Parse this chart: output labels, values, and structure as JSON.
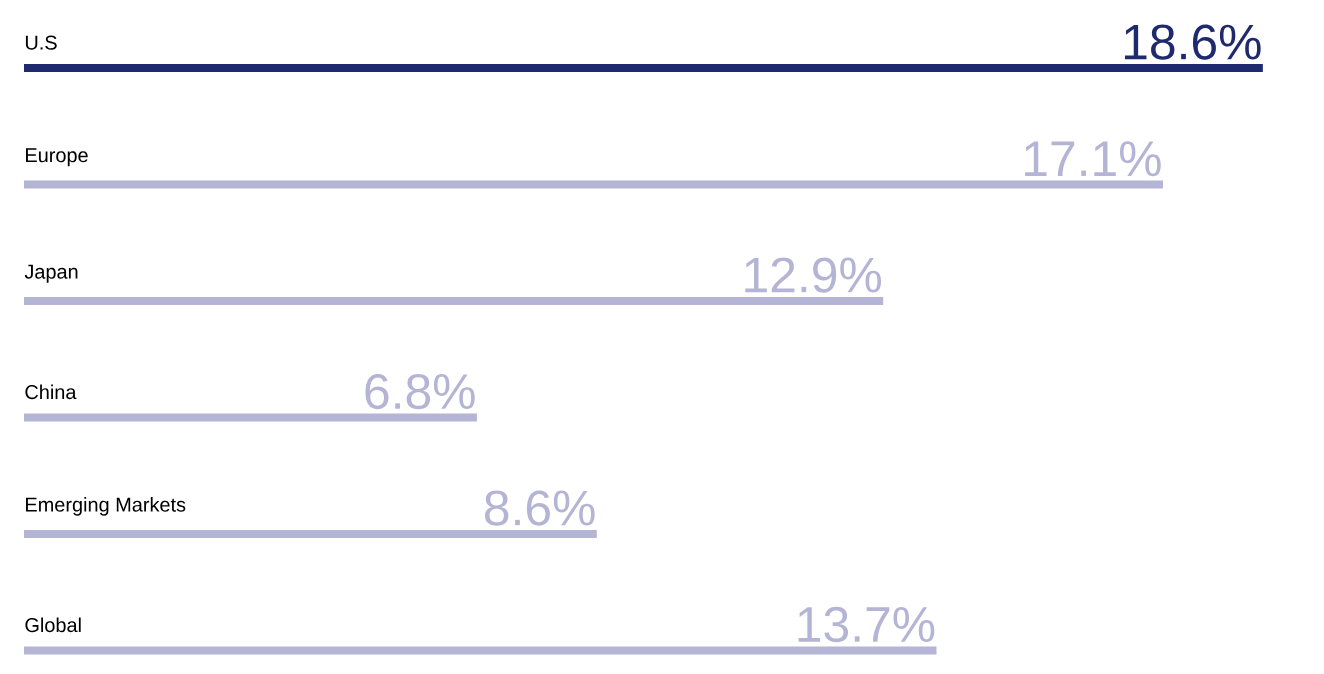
{
  "chart_data": {
    "type": "bar",
    "orientation": "horizontal",
    "categories": [
      "U.S",
      "Europe",
      "Japan",
      "China",
      "Emerging Markets",
      "Global"
    ],
    "values": [
      18.6,
      17.1,
      12.9,
      6.8,
      8.6,
      13.7
    ],
    "colors": [
      "#1f2a6e",
      "#b4b4d4",
      "#b4b4d4",
      "#b4b4d4",
      "#b4b4d4",
      "#b4b4d4"
    ],
    "value_labels": [
      "18.6%",
      "17.1%",
      "12.9%",
      "6.8%",
      "8.6%",
      "13.7%"
    ]
  }
}
